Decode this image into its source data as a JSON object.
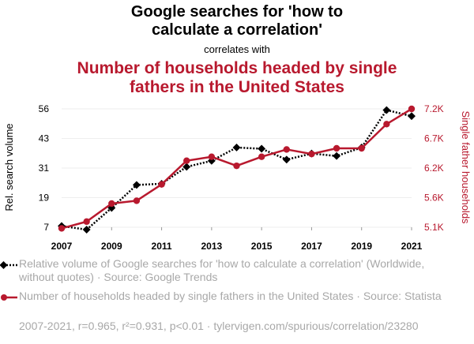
{
  "title_line1": "Google searches for 'how to",
  "title_line2": "calculate a correlation'",
  "subtitle": "correlates with",
  "red_title_line1": "Number of households headed by single",
  "red_title_line2": "fathers in the United States",
  "colors": {
    "black": "#000000",
    "red": "#b8192e",
    "grey": "#a8a8a8"
  },
  "chart_data": {
    "type": "line",
    "x": [
      2007,
      2008,
      2009,
      2010,
      2011,
      2012,
      2013,
      2014,
      2015,
      2016,
      2017,
      2018,
      2019,
      2020,
      2021
    ],
    "series": [
      {
        "name": "Relative volume of Google searches for 'how to calculate a correlation'",
        "axis": "left",
        "values": [
          7.5,
          6.0,
          15.0,
          24.5,
          25.0,
          32.0,
          34.5,
          40.0,
          39.5,
          35.0,
          37.5,
          36.5,
          40.0,
          55.5,
          53.0
        ]
      },
      {
        "name": "Number of households headed by single fathers in the United States",
        "axis": "right",
        "values": [
          5080,
          5200,
          5520,
          5570,
          5860,
          6280,
          6350,
          6190,
          6350,
          6480,
          6400,
          6500,
          6500,
          6930,
          7200
        ]
      }
    ],
    "ylabel_left": "Rel. search volume",
    "ylabel_right": "Single father households",
    "x_ticks": [
      "2007",
      "2009",
      "2011",
      "2013",
      "2015",
      "2017",
      "2019",
      "2021"
    ],
    "y_left_ticks": [
      "7",
      "19",
      "31",
      "43",
      "56"
    ],
    "y_right_ticks": [
      "5.1K",
      "5.6K",
      "6.2K",
      "6.7K",
      "7.2K"
    ],
    "ylim_left": [
      7,
      56
    ],
    "ylim_right": [
      5100,
      7200
    ],
    "xlim": [
      2007,
      2021
    ]
  },
  "legend": {
    "item1": "Relative volume of Google searches for 'how to calculate a correlation' (Worldwide, without quotes) · Source: Google Trends",
    "item2": "Number of households headed by single fathers in the United States · Source: Statista"
  },
  "footer": "2007-2021, r=0.965, r²=0.931, p<0.01 · tylervigen.com/spurious/correlation/23280"
}
